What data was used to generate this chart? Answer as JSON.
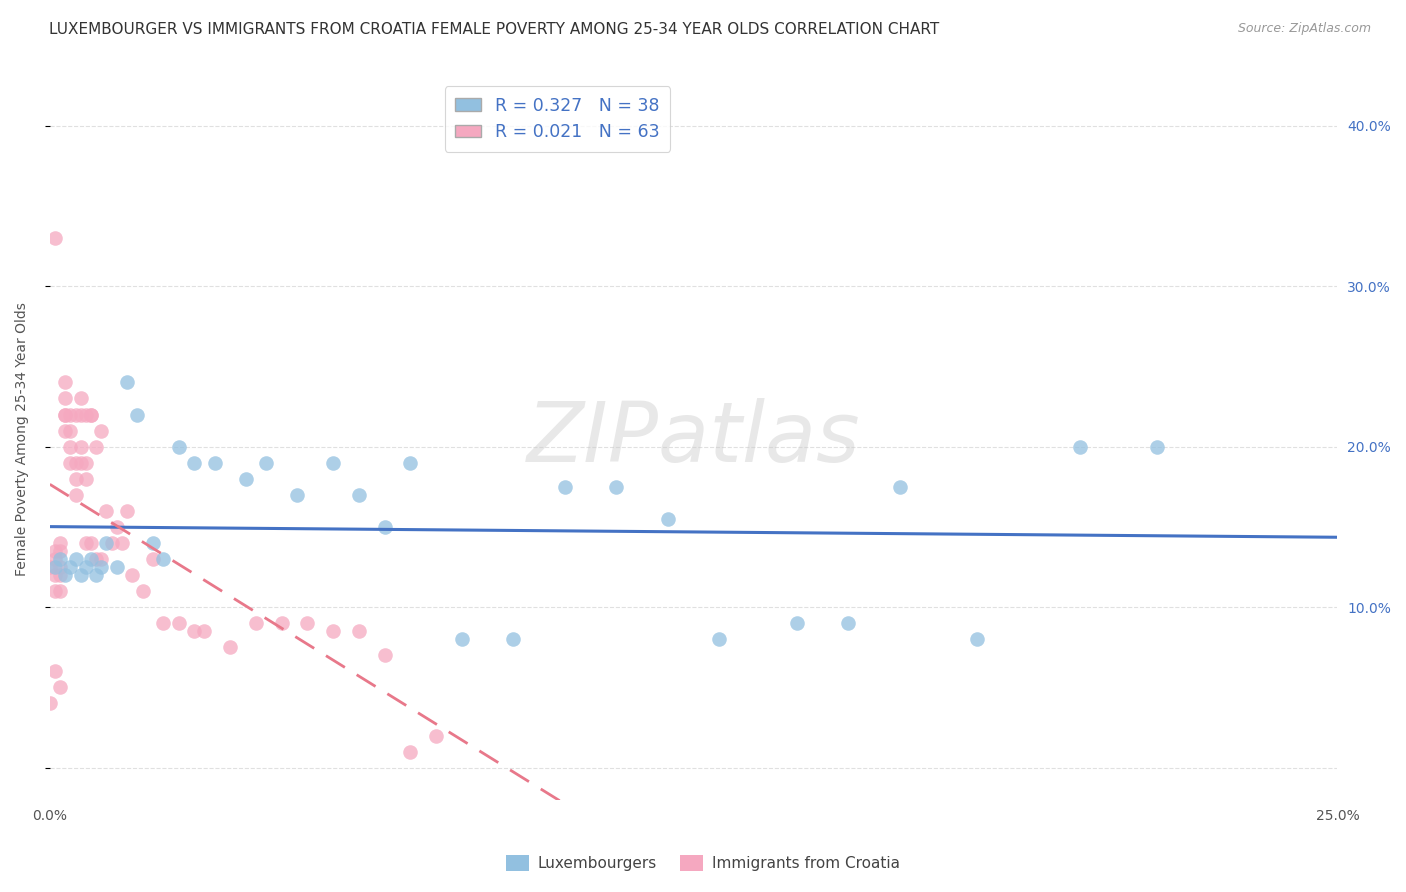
{
  "title": "LUXEMBOURGER VS IMMIGRANTS FROM CROATIA FEMALE POVERTY AMONG 25-34 YEAR OLDS CORRELATION CHART",
  "source": "Source: ZipAtlas.com",
  "ylabel": "Female Poverty Among 25-34 Year Olds",
  "xlim": [
    0,
    0.25
  ],
  "ylim": [
    -0.02,
    0.43
  ],
  "yticks_right": [
    0.1,
    0.2,
    0.3,
    0.4
  ],
  "ytick_right_labels": [
    "10.0%",
    "20.0%",
    "30.0%",
    "40.0%"
  ],
  "legend1_R": "0.327",
  "legend1_N": "38",
  "legend2_R": "0.021",
  "legend2_N": "63",
  "color_blue": "#92C0E0",
  "color_pink": "#F5A8C0",
  "color_blue_line": "#4472C4",
  "color_pink_line": "#E8788A",
  "watermark": "ZIPatlas",
  "blue_x": [
    0.001,
    0.002,
    0.003,
    0.004,
    0.005,
    0.006,
    0.007,
    0.008,
    0.009,
    0.01,
    0.011,
    0.013,
    0.015,
    0.017,
    0.02,
    0.022,
    0.025,
    0.028,
    0.032,
    0.038,
    0.042,
    0.048,
    0.055,
    0.06,
    0.065,
    0.07,
    0.08,
    0.09,
    0.1,
    0.11,
    0.12,
    0.13,
    0.145,
    0.155,
    0.165,
    0.18,
    0.2,
    0.215
  ],
  "blue_y": [
    0.125,
    0.13,
    0.12,
    0.125,
    0.13,
    0.12,
    0.125,
    0.13,
    0.12,
    0.125,
    0.14,
    0.125,
    0.24,
    0.22,
    0.14,
    0.13,
    0.2,
    0.19,
    0.19,
    0.18,
    0.19,
    0.17,
    0.19,
    0.17,
    0.15,
    0.19,
    0.08,
    0.08,
    0.175,
    0.175,
    0.155,
    0.08,
    0.09,
    0.09,
    0.175,
    0.08,
    0.2,
    0.2
  ],
  "pink_x": [
    0.0,
    0.0,
    0.001,
    0.001,
    0.001,
    0.001,
    0.001,
    0.001,
    0.002,
    0.002,
    0.002,
    0.002,
    0.002,
    0.002,
    0.003,
    0.003,
    0.003,
    0.003,
    0.003,
    0.004,
    0.004,
    0.004,
    0.004,
    0.005,
    0.005,
    0.005,
    0.005,
    0.006,
    0.006,
    0.006,
    0.006,
    0.007,
    0.007,
    0.007,
    0.007,
    0.008,
    0.008,
    0.008,
    0.009,
    0.009,
    0.01,
    0.01,
    0.011,
    0.012,
    0.013,
    0.014,
    0.015,
    0.016,
    0.018,
    0.02,
    0.022,
    0.025,
    0.028,
    0.03,
    0.035,
    0.04,
    0.045,
    0.05,
    0.055,
    0.06,
    0.065,
    0.07,
    0.075
  ],
  "pink_y": [
    0.125,
    0.04,
    0.33,
    0.12,
    0.13,
    0.11,
    0.135,
    0.06,
    0.135,
    0.12,
    0.125,
    0.11,
    0.05,
    0.14,
    0.22,
    0.24,
    0.23,
    0.22,
    0.21,
    0.22,
    0.21,
    0.2,
    0.19,
    0.19,
    0.18,
    0.17,
    0.22,
    0.2,
    0.19,
    0.22,
    0.23,
    0.18,
    0.19,
    0.14,
    0.22,
    0.22,
    0.14,
    0.22,
    0.2,
    0.13,
    0.21,
    0.13,
    0.16,
    0.14,
    0.15,
    0.14,
    0.16,
    0.12,
    0.11,
    0.13,
    0.09,
    0.09,
    0.085,
    0.085,
    0.075,
    0.09,
    0.09,
    0.09,
    0.085,
    0.085,
    0.07,
    0.01,
    0.02
  ],
  "grid_color": "#E0E0E0",
  "background_color": "#FFFFFF",
  "title_fontsize": 11,
  "axis_label_fontsize": 10,
  "tick_fontsize": 10
}
